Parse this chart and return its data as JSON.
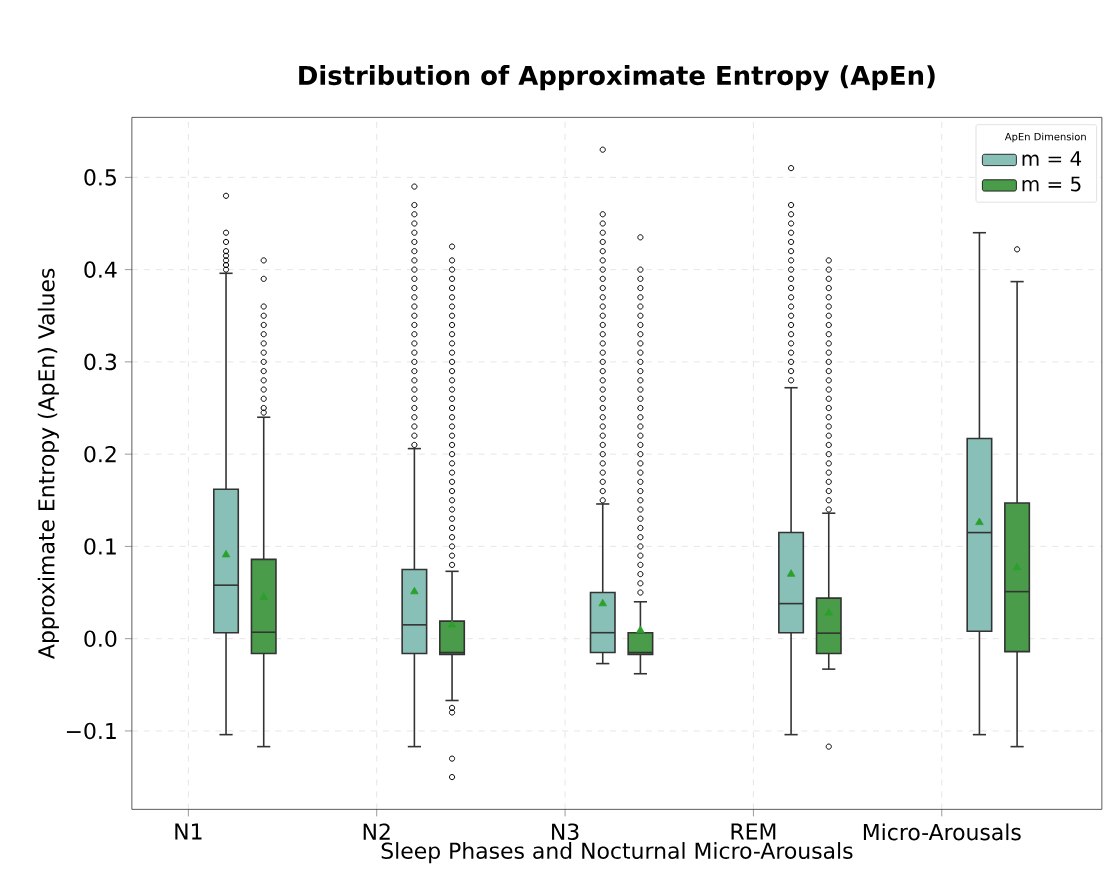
{
  "chart_data": {
    "type": "box",
    "title": "Distribution of Approximate Entropy (ApEn)",
    "xlabel": "Sleep Phases and Nocturnal Micro-Arousals",
    "ylabel": "Approximate Entropy (ApEn) Values",
    "legend_title": "ApEn Dimension",
    "categories": [
      "N1",
      "N2",
      "N3",
      "REM",
      "Micro-Arousals"
    ],
    "ylim": [
      -0.185,
      0.565
    ],
    "yticks": [
      {
        "value": -0.1,
        "label": "−0.1"
      },
      {
        "value": 0.0,
        "label": "0.0"
      },
      {
        "value": 0.1,
        "label": "0.1"
      },
      {
        "value": 0.2,
        "label": "0.2"
      },
      {
        "value": 0.3,
        "label": "0.3"
      },
      {
        "value": 0.4,
        "label": "0.4"
      },
      {
        "value": 0.5,
        "label": "0.5"
      }
    ],
    "grid": true,
    "legend": "top right",
    "series": [
      {
        "name": "m = 4",
        "color": "#88c0b8",
        "boxes": [
          {
            "low": -0.104,
            "q1": 0.0065,
            "median": 0.058,
            "q3": 0.162,
            "high": 0.396,
            "mean": 0.091,
            "outliers": [
              0.4,
              0.405,
              0.41,
              0.415,
              0.42,
              0.43,
              0.44,
              0.48
            ]
          },
          {
            "low": -0.117,
            "q1": -0.016,
            "median": 0.015,
            "q3": 0.075,
            "high": 0.206,
            "mean": 0.051,
            "outliers": [
              0.21,
              0.22,
              0.23,
              0.24,
              0.25,
              0.26,
              0.27,
              0.28,
              0.29,
              0.3,
              0.31,
              0.32,
              0.33,
              0.34,
              0.35,
              0.36,
              0.37,
              0.38,
              0.39,
              0.4,
              0.41,
              0.42,
              0.43,
              0.44,
              0.45,
              0.46,
              0.47,
              0.49
            ]
          },
          {
            "low": -0.027,
            "q1": -0.015,
            "median": 0.0065,
            "q3": 0.05,
            "high": 0.146,
            "mean": 0.038,
            "outliers": [
              0.15,
              0.16,
              0.17,
              0.18,
              0.19,
              0.2,
              0.21,
              0.22,
              0.23,
              0.24,
              0.25,
              0.26,
              0.27,
              0.28,
              0.29,
              0.3,
              0.31,
              0.32,
              0.33,
              0.34,
              0.35,
              0.36,
              0.37,
              0.38,
              0.39,
              0.4,
              0.41,
              0.42,
              0.43,
              0.44,
              0.45,
              0.46,
              0.53
            ]
          },
          {
            "low": -0.104,
            "q1": 0.0065,
            "median": 0.038,
            "q3": 0.115,
            "high": 0.272,
            "mean": 0.07,
            "outliers": [
              0.28,
              0.29,
              0.3,
              0.31,
              0.32,
              0.33,
              0.34,
              0.35,
              0.36,
              0.37,
              0.38,
              0.39,
              0.4,
              0.41,
              0.42,
              0.43,
              0.44,
              0.45,
              0.46,
              0.47,
              0.51
            ]
          },
          {
            "low": -0.104,
            "q1": 0.008,
            "median": 0.115,
            "q3": 0.217,
            "high": 0.44,
            "mean": 0.126
          }
        ]
      },
      {
        "name": "m = 5",
        "color": "#4a9c4a",
        "boxes": [
          {
            "low": -0.117,
            "q1": -0.016,
            "median": 0.007,
            "q3": 0.086,
            "high": 0.24,
            "mean": 0.045,
            "outliers": [
              0.245,
              0.25,
              0.26,
              0.27,
              0.28,
              0.29,
              0.3,
              0.31,
              0.32,
              0.33,
              0.34,
              0.35,
              0.36,
              0.39,
              0.41
            ]
          },
          {
            "low": -0.067,
            "q1": -0.017,
            "median": -0.015,
            "q3": 0.019,
            "high": 0.073,
            "mean": 0.015,
            "outliers": [
              -0.075,
              -0.08,
              -0.13,
              -0.15,
              0.08,
              0.09,
              0.1,
              0.11,
              0.12,
              0.13,
              0.14,
              0.15,
              0.16,
              0.17,
              0.18,
              0.19,
              0.2,
              0.21,
              0.22,
              0.23,
              0.24,
              0.25,
              0.26,
              0.27,
              0.28,
              0.29,
              0.3,
              0.31,
              0.32,
              0.33,
              0.34,
              0.35,
              0.36,
              0.37,
              0.38,
              0.39,
              0.4,
              0.41,
              0.425
            ]
          },
          {
            "low": -0.038,
            "q1": -0.017,
            "median": -0.015,
            "q3": 0.0065,
            "high": 0.04,
            "mean": 0.009,
            "outliers": [
              0.05,
              0.06,
              0.07,
              0.08,
              0.09,
              0.1,
              0.11,
              0.12,
              0.13,
              0.14,
              0.15,
              0.16,
              0.17,
              0.18,
              0.19,
              0.2,
              0.21,
              0.22,
              0.23,
              0.24,
              0.25,
              0.26,
              0.27,
              0.28,
              0.29,
              0.3,
              0.31,
              0.32,
              0.33,
              0.34,
              0.35,
              0.36,
              0.37,
              0.38,
              0.39,
              0.4,
              0.435
            ]
          },
          {
            "low": -0.033,
            "q1": -0.016,
            "median": 0.006,
            "q3": 0.044,
            "high": 0.136,
            "mean": 0.028,
            "outliers": [
              -0.117,
              0.14,
              0.15,
              0.16,
              0.17,
              0.18,
              0.19,
              0.2,
              0.21,
              0.22,
              0.23,
              0.24,
              0.25,
              0.26,
              0.27,
              0.28,
              0.29,
              0.3,
              0.31,
              0.32,
              0.33,
              0.34,
              0.35,
              0.36,
              0.37,
              0.38,
              0.39,
              0.4,
              0.41
            ]
          },
          {
            "low": -0.117,
            "q1": -0.014,
            "median": 0.051,
            "q3": 0.147,
            "high": 0.387,
            "mean": 0.077,
            "outliers": [
              0.422
            ]
          }
        ]
      }
    ]
  }
}
